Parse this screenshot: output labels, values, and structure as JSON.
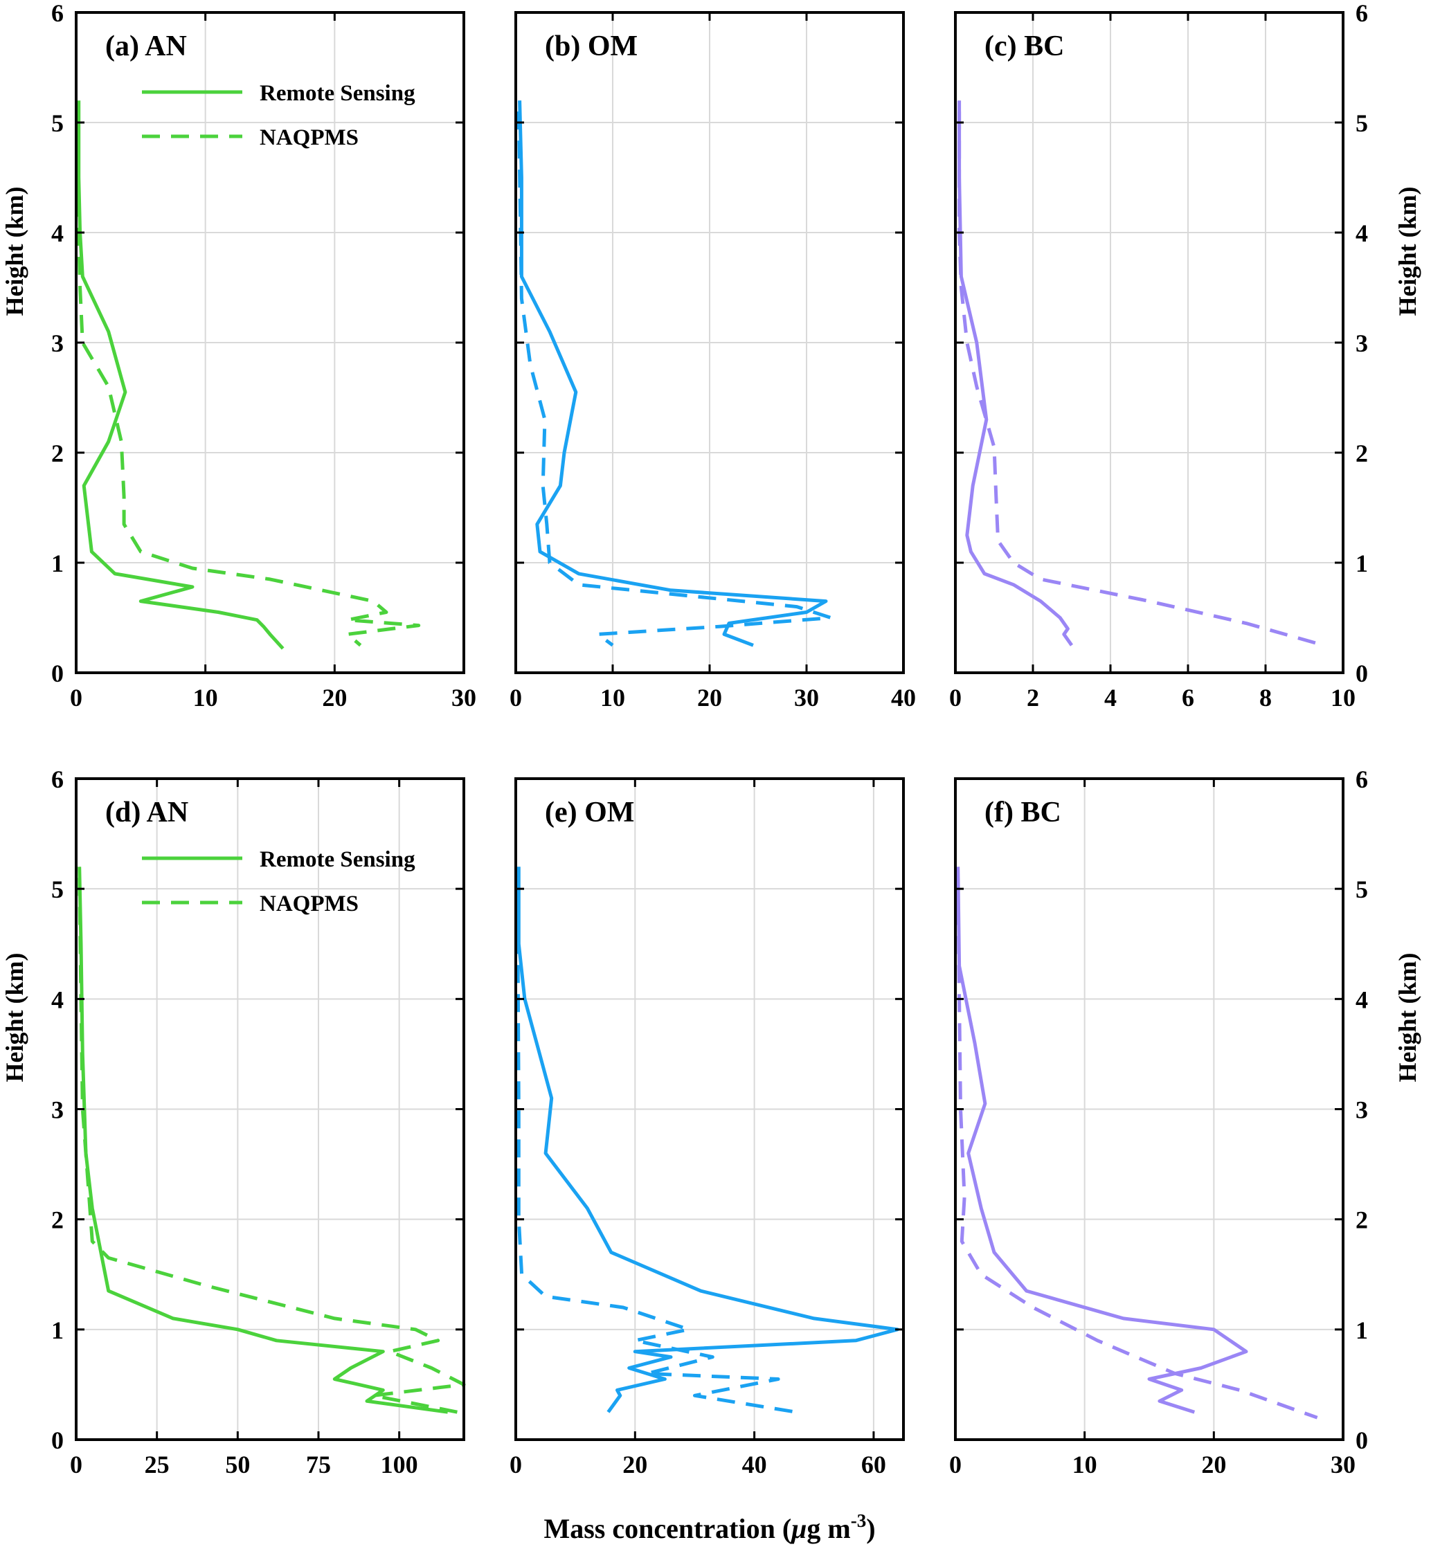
{
  "figure": {
    "ylabel": "Height (km)",
    "xlabel_prefix": "Mass concentration (",
    "xlabel_mu": "μ",
    "xlabel_unit": "g m",
    "xlabel_exp": "-3",
    "xlabel_suffix": ")"
  },
  "legend": {
    "entries": [
      {
        "label": "Remote Sensing",
        "style": "solid"
      },
      {
        "label": "NAQPMS",
        "style": "dashed"
      }
    ]
  },
  "colors": {
    "AN": "#4bd23c",
    "OM": "#1aa2f2",
    "BC": "#9a86f5",
    "grid": "#d9d9d9"
  },
  "chart_data": [
    {
      "type": "line",
      "title": "(a) AN",
      "color_key": "AN",
      "xlim": [
        0,
        30
      ],
      "xticks": [
        0,
        10,
        20,
        30
      ],
      "ylim": [
        0,
        6
      ],
      "yticks": [
        0,
        1,
        2,
        3,
        4,
        5,
        6
      ],
      "ylabel_side": "left",
      "show_legend": true,
      "series": [
        {
          "name": "Remote Sensing",
          "style": "solid",
          "points": [
            [
              0.2,
              5.2
            ],
            [
              0.2,
              4.5
            ],
            [
              0.3,
              4
            ],
            [
              0.5,
              3.6
            ],
            [
              2.5,
              3.1
            ],
            [
              3.8,
              2.55
            ],
            [
              2.5,
              2.1
            ],
            [
              0.6,
              1.7
            ],
            [
              1.2,
              1.1
            ],
            [
              3,
              0.9
            ],
            [
              9,
              0.78
            ],
            [
              5,
              0.65
            ],
            [
              11,
              0.55
            ],
            [
              14,
              0.48
            ],
            [
              14.5,
              0.42
            ],
            [
              15,
              0.35
            ],
            [
              16,
              0.22
            ]
          ]
        },
        {
          "name": "NAQPMS",
          "style": "dashed",
          "points": [
            [
              0.1,
              5.1
            ],
            [
              0.2,
              4.0
            ],
            [
              0.3,
              3.5
            ],
            [
              0.5,
              3.0
            ],
            [
              1.5,
              2.8
            ],
            [
              2.5,
              2.6
            ],
            [
              3.5,
              2.1
            ],
            [
              3.7,
              1.6
            ],
            [
              3.7,
              1.35
            ],
            [
              5,
              1.1
            ],
            [
              9,
              0.95
            ],
            [
              15,
              0.85
            ],
            [
              23,
              0.65
            ],
            [
              24,
              0.55
            ],
            [
              21,
              0.48
            ],
            [
              26.5,
              0.43
            ],
            [
              21,
              0.35
            ],
            [
              22,
              0.25
            ]
          ]
        }
      ]
    },
    {
      "type": "line",
      "title": "(b) OM",
      "color_key": "OM",
      "xlim": [
        0,
        40
      ],
      "xticks": [
        0,
        10,
        20,
        30,
        40
      ],
      "ylim": [
        0,
        6
      ],
      "yticks": [
        0,
        1,
        2,
        3,
        4,
        5,
        6
      ],
      "ylabel_side": "none",
      "show_legend": false,
      "series": [
        {
          "name": "Remote Sensing",
          "style": "solid",
          "points": [
            [
              0.4,
              5.2
            ],
            [
              0.6,
              4.5
            ],
            [
              0.6,
              3.6
            ],
            [
              3.5,
              3.1
            ],
            [
              6.2,
              2.55
            ],
            [
              5,
              2.0
            ],
            [
              4.6,
              1.7
            ],
            [
              2.2,
              1.35
            ],
            [
              2.5,
              1.1
            ],
            [
              6.5,
              0.9
            ],
            [
              16,
              0.75
            ],
            [
              32,
              0.65
            ],
            [
              30,
              0.55
            ],
            [
              22,
              0.45
            ],
            [
              21.5,
              0.35
            ],
            [
              24.5,
              0.25
            ]
          ]
        },
        {
          "name": "NAQPMS",
          "style": "dashed",
          "points": [
            [
              0.3,
              5.1
            ],
            [
              0.5,
              4.0
            ],
            [
              0.6,
              3.4
            ],
            [
              1.5,
              2.8
            ],
            [
              3,
              2.3
            ],
            [
              2.8,
              1.7
            ],
            [
              3.2,
              1.35
            ],
            [
              3.5,
              1.0
            ],
            [
              6.5,
              0.8
            ],
            [
              29,
              0.6
            ],
            [
              32.5,
              0.5
            ],
            [
              21,
              0.42
            ],
            [
              8.5,
              0.35
            ],
            [
              10,
              0.25
            ]
          ]
        }
      ]
    },
    {
      "type": "line",
      "title": "(c) BC",
      "color_key": "BC",
      "xlim": [
        0,
        10
      ],
      "xticks": [
        0,
        2,
        4,
        6,
        8,
        10
      ],
      "ylim": [
        0,
        6
      ],
      "yticks": [
        0,
        1,
        2,
        3,
        4,
        5,
        6
      ],
      "ylabel_side": "right",
      "show_legend": false,
      "series": [
        {
          "name": "Remote Sensing",
          "style": "solid",
          "points": [
            [
              0.1,
              5.2
            ],
            [
              0.1,
              4.5
            ],
            [
              0.15,
              3.6
            ],
            [
              0.55,
              3.0
            ],
            [
              0.8,
              2.3
            ],
            [
              0.45,
              1.7
            ],
            [
              0.3,
              1.25
            ],
            [
              0.4,
              1.1
            ],
            [
              0.75,
              0.9
            ],
            [
              1.5,
              0.8
            ],
            [
              2.2,
              0.65
            ],
            [
              2.7,
              0.5
            ],
            [
              2.9,
              0.4
            ],
            [
              2.8,
              0.35
            ],
            [
              3.0,
              0.25
            ]
          ]
        },
        {
          "name": "NAQPMS",
          "style": "dashed",
          "points": [
            [
              0.1,
              5.1
            ],
            [
              0.1,
              4.0
            ],
            [
              0.15,
              3.5
            ],
            [
              0.3,
              3.0
            ],
            [
              0.55,
              2.6
            ],
            [
              1.0,
              2.05
            ],
            [
              1.05,
              1.6
            ],
            [
              1.1,
              1.2
            ],
            [
              1.5,
              1.0
            ],
            [
              2.2,
              0.85
            ],
            [
              5,
              0.65
            ],
            [
              7.5,
              0.45
            ],
            [
              9.5,
              0.25
            ]
          ]
        }
      ]
    },
    {
      "type": "line",
      "title": "(d) AN",
      "color_key": "AN",
      "xlim": [
        0,
        120
      ],
      "xticks": [
        0,
        25,
        50,
        75,
        100
      ],
      "ylim": [
        0,
        6
      ],
      "yticks": [
        0,
        1,
        2,
        3,
        4,
        5,
        6
      ],
      "ylabel_side": "left",
      "show_legend": true,
      "series": [
        {
          "name": "Remote Sensing",
          "style": "solid",
          "points": [
            [
              1,
              5.2
            ],
            [
              1.5,
              4.5
            ],
            [
              2,
              3.5
            ],
            [
              3,
              2.6
            ],
            [
              5,
              2.1
            ],
            [
              10,
              1.35
            ],
            [
              30,
              1.1
            ],
            [
              50,
              1.0
            ],
            [
              62,
              0.9
            ],
            [
              95,
              0.8
            ],
            [
              85,
              0.65
            ],
            [
              80,
              0.55
            ],
            [
              95,
              0.45
            ],
            [
              90,
              0.35
            ],
            [
              115,
              0.25
            ]
          ]
        },
        {
          "name": "NAQPMS",
          "style": "dashed",
          "points": [
            [
              1,
              5.1
            ],
            [
              1.5,
              4.0
            ],
            [
              2,
              3.0
            ],
            [
              4,
              2.2
            ],
            [
              5,
              1.8
            ],
            [
              10,
              1.65
            ],
            [
              40,
              1.4
            ],
            [
              80,
              1.1
            ],
            [
              105,
              1.0
            ],
            [
              112,
              0.9
            ],
            [
              97,
              0.8
            ],
            [
              110,
              0.65
            ],
            [
              120,
              0.5
            ],
            [
              92,
              0.4
            ],
            [
              118,
              0.25
            ]
          ]
        }
      ]
    },
    {
      "type": "line",
      "title": "(e) OM",
      "color_key": "OM",
      "xlim": [
        0,
        65
      ],
      "xticks": [
        0,
        20,
        40,
        60
      ],
      "ylim": [
        0,
        6
      ],
      "yticks": [
        0,
        1,
        2,
        3,
        4,
        5,
        6
      ],
      "ylabel_side": "none",
      "show_legend": false,
      "series": [
        {
          "name": "Remote Sensing",
          "style": "solid",
          "points": [
            [
              0.5,
              5.2
            ],
            [
              0.5,
              4.5
            ],
            [
              1.5,
              4.0
            ],
            [
              4,
              3.5
            ],
            [
              6,
              3.1
            ],
            [
              5,
              2.6
            ],
            [
              12,
              2.1
            ],
            [
              16,
              1.7
            ],
            [
              31,
              1.35
            ],
            [
              50,
              1.1
            ],
            [
              64,
              1.0
            ],
            [
              57,
              0.9
            ],
            [
              20,
              0.8
            ],
            [
              26,
              0.75
            ],
            [
              19,
              0.65
            ],
            [
              25,
              0.55
            ],
            [
              17,
              0.45
            ],
            [
              17.5,
              0.4
            ],
            [
              15.5,
              0.25
            ]
          ]
        },
        {
          "name": "NAQPMS",
          "style": "dashed",
          "points": [
            [
              0.3,
              5.1
            ],
            [
              0.4,
              4.0
            ],
            [
              0.5,
              3.0
            ],
            [
              0.5,
              2.0
            ],
            [
              1,
              1.5
            ],
            [
              5,
              1.3
            ],
            [
              18,
              1.2
            ],
            [
              29,
              1.0
            ],
            [
              20,
              0.9
            ],
            [
              33,
              0.75
            ],
            [
              22,
              0.6
            ],
            [
              44,
              0.55
            ],
            [
              30,
              0.4
            ],
            [
              47,
              0.25
            ]
          ]
        }
      ]
    },
    {
      "type": "line",
      "title": "(f) BC",
      "color_key": "BC",
      "xlim": [
        0,
        30
      ],
      "xticks": [
        0,
        10,
        20,
        30
      ],
      "ylim": [
        0,
        6
      ],
      "yticks": [
        0,
        1,
        2,
        3,
        4,
        5,
        6
      ],
      "ylabel_side": "right",
      "show_legend": false,
      "series": [
        {
          "name": "Remote Sensing",
          "style": "solid",
          "points": [
            [
              0.2,
              5.2
            ],
            [
              0.3,
              4.3
            ],
            [
              1.5,
              3.6
            ],
            [
              2.3,
              3.05
            ],
            [
              1,
              2.6
            ],
            [
              2,
              2.1
            ],
            [
              3,
              1.7
            ],
            [
              5.5,
              1.35
            ],
            [
              13,
              1.1
            ],
            [
              20,
              1.0
            ],
            [
              22.5,
              0.8
            ],
            [
              19,
              0.65
            ],
            [
              15,
              0.55
            ],
            [
              17.5,
              0.45
            ],
            [
              15.8,
              0.35
            ],
            [
              18.5,
              0.25
            ]
          ]
        },
        {
          "name": "NAQPMS",
          "style": "dashed",
          "points": [
            [
              0.2,
              5.1
            ],
            [
              0.3,
              4.0
            ],
            [
              0.4,
              3.0
            ],
            [
              0.7,
              2.2
            ],
            [
              0.5,
              1.8
            ],
            [
              2,
              1.5
            ],
            [
              6,
              1.2
            ],
            [
              11,
              0.9
            ],
            [
              17,
              0.6
            ],
            [
              22,
              0.45
            ],
            [
              28,
              0.2
            ]
          ]
        }
      ]
    }
  ]
}
